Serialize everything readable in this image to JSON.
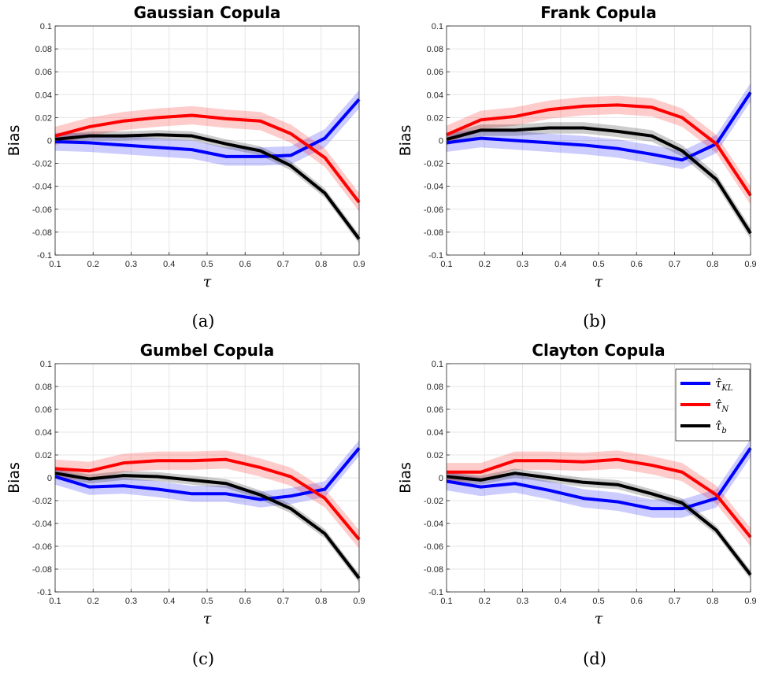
{
  "chart_data": [
    {
      "type": "line",
      "title": "Gaussian Copula",
      "xlabel": "τ",
      "ylabel": "Bias",
      "caption": "(a)",
      "xlim": [
        0.1,
        0.9
      ],
      "ylim": [
        -0.1,
        0.1
      ],
      "grid": true,
      "x": [
        0.1,
        0.19,
        0.28,
        0.37,
        0.46,
        0.55,
        0.64,
        0.72,
        0.81,
        0.9
      ],
      "series": [
        {
          "key": "kl",
          "color": "#0000ff",
          "band": 0.008,
          "values": [
            -0.001,
            -0.002,
            -0.004,
            -0.006,
            -0.008,
            -0.014,
            -0.014,
            -0.013,
            0.002,
            0.036
          ]
        },
        {
          "key": "n",
          "color": "#ff0000",
          "band": 0.008,
          "values": [
            0.004,
            0.012,
            0.017,
            0.02,
            0.022,
            0.019,
            0.017,
            0.006,
            -0.015,
            -0.054
          ]
        },
        {
          "key": "b",
          "color": "#000000",
          "band": 0.004,
          "values": [
            0.001,
            0.004,
            0.004,
            0.005,
            0.004,
            -0.003,
            -0.009,
            -0.022,
            -0.046,
            -0.086
          ]
        }
      ]
    },
    {
      "type": "line",
      "title": "Frank Copula",
      "xlabel": "τ",
      "ylabel": "Bias",
      "caption": "(b)",
      "xlim": [
        0.1,
        0.9
      ],
      "ylim": [
        -0.1,
        0.1
      ],
      "grid": true,
      "x": [
        0.1,
        0.19,
        0.28,
        0.37,
        0.46,
        0.55,
        0.64,
        0.72,
        0.81,
        0.9
      ],
      "series": [
        {
          "key": "kl",
          "color": "#0000ff",
          "band": 0.008,
          "values": [
            -0.002,
            0.002,
            0.0,
            -0.002,
            -0.004,
            -0.007,
            -0.012,
            -0.017,
            -0.003,
            0.042
          ]
        },
        {
          "key": "n",
          "color": "#ff0000",
          "band": 0.008,
          "values": [
            0.005,
            0.018,
            0.021,
            0.027,
            0.03,
            0.031,
            0.029,
            0.02,
            -0.003,
            -0.048
          ]
        },
        {
          "key": "b",
          "color": "#000000",
          "band": 0.005,
          "values": [
            0.001,
            0.009,
            0.009,
            0.011,
            0.011,
            0.008,
            0.004,
            -0.009,
            -0.034,
            -0.081
          ]
        }
      ]
    },
    {
      "type": "line",
      "title": "Gumbel Copula",
      "xlabel": "τ",
      "ylabel": "Bias",
      "caption": "(c)",
      "xlim": [
        0.1,
        0.9
      ],
      "ylim": [
        -0.1,
        0.1
      ],
      "grid": true,
      "x": [
        0.1,
        0.19,
        0.28,
        0.37,
        0.46,
        0.55,
        0.64,
        0.72,
        0.81,
        0.9
      ],
      "series": [
        {
          "key": "kl",
          "color": "#0000ff",
          "band": 0.007,
          "values": [
            0.001,
            -0.008,
            -0.007,
            -0.01,
            -0.014,
            -0.014,
            -0.019,
            -0.016,
            -0.01,
            0.026
          ]
        },
        {
          "key": "n",
          "color": "#ff0000",
          "band": 0.008,
          "values": [
            0.008,
            0.006,
            0.013,
            0.015,
            0.015,
            0.016,
            0.009,
            0.001,
            -0.018,
            -0.054
          ]
        },
        {
          "key": "b",
          "color": "#000000",
          "band": 0.004,
          "values": [
            0.004,
            -0.001,
            0.002,
            0.001,
            -0.002,
            -0.005,
            -0.015,
            -0.027,
            -0.049,
            -0.088
          ]
        }
      ]
    },
    {
      "type": "line",
      "title": "Clayton Copula",
      "xlabel": "τ",
      "ylabel": "Bias",
      "caption": "(d)",
      "xlim": [
        0.1,
        0.9
      ],
      "ylim": [
        -0.1,
        0.1
      ],
      "grid": true,
      "legend": "top-right",
      "x": [
        0.1,
        0.19,
        0.28,
        0.37,
        0.46,
        0.55,
        0.64,
        0.72,
        0.81,
        0.9
      ],
      "series": [
        {
          "key": "kl",
          "color": "#0000ff",
          "band": 0.008,
          "values": [
            -0.003,
            -0.008,
            -0.005,
            -0.011,
            -0.018,
            -0.021,
            -0.027,
            -0.027,
            -0.018,
            0.026
          ]
        },
        {
          "key": "n",
          "color": "#ff0000",
          "band": 0.008,
          "values": [
            0.005,
            0.005,
            0.015,
            0.015,
            0.014,
            0.016,
            0.011,
            0.005,
            -0.015,
            -0.052
          ]
        },
        {
          "key": "b",
          "color": "#000000",
          "band": 0.004,
          "values": [
            0.001,
            -0.002,
            0.004,
            0.0,
            -0.004,
            -0.006,
            -0.014,
            -0.022,
            -0.046,
            -0.085
          ]
        }
      ]
    }
  ],
  "legend": [
    {
      "key": "kl",
      "label": "τ̂",
      "sub": "KL",
      "color": "#0000ff"
    },
    {
      "key": "n",
      "label": "τ̂",
      "sub": "N",
      "color": "#ff0000"
    },
    {
      "key": "b",
      "label": "τ̂",
      "sub": "b",
      "color": "#000000"
    }
  ],
  "xticks": [
    "0.1",
    "0.2",
    "0.3",
    "0.4",
    "0.5",
    "0.6",
    "0.7",
    "0.8",
    "0.9"
  ],
  "yticks": [
    "-0.1",
    "-0.08",
    "-0.06",
    "-0.04",
    "-0.02",
    "0",
    "0.02",
    "0.04",
    "0.06",
    "0.08",
    "0.1"
  ]
}
